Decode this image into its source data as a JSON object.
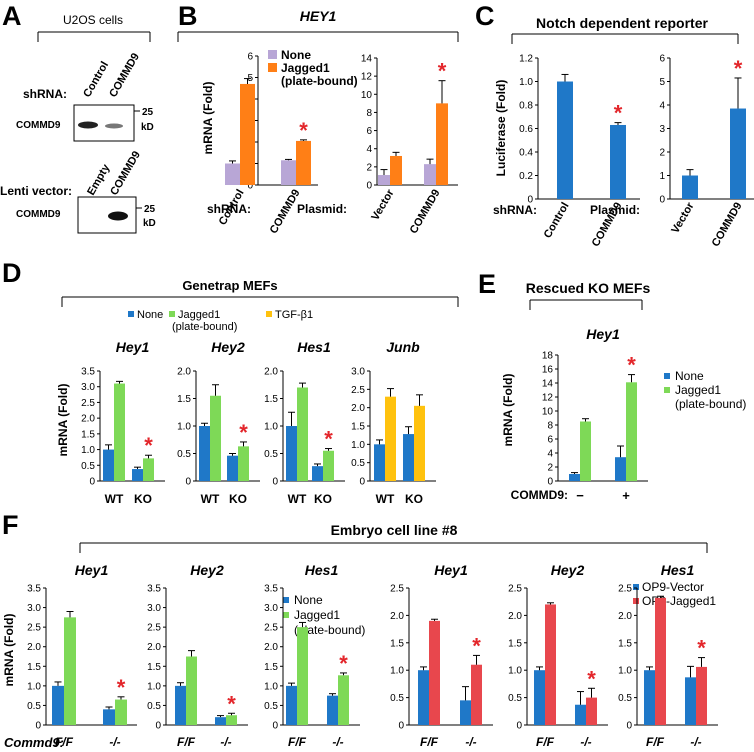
{
  "colors": {
    "blue": "#1f78c8",
    "green": "#7ed957",
    "orange": "#ff7f16",
    "lavender": "#b8a6d6",
    "yellow": "#ffc20e",
    "red": "#e8474d",
    "star": "#e3262b"
  },
  "panels": {
    "A": {
      "letter": "A",
      "cells": "U2OS cells",
      "shrna_label": "shRNA:",
      "lane1": "Control",
      "lane2": "COMMD9",
      "band1": "COMMD9",
      "mw1": "25",
      "kd1": "kD",
      "lenti_label": "Lenti vector:",
      "lane3": "Empty",
      "lane4": "COMMD9",
      "band2": "COMMD9",
      "mw2": "25",
      "kd2": "kD"
    },
    "B": {
      "letter": "B",
      "title": "HEY1",
      "ylabel": "mRNA (Fold)",
      "legend_none": "None",
      "legend_jag": "Jagged1",
      "legend_jag2": "(plate-bound)",
      "row1": "shRNA:",
      "row2": "Plasmid:"
    },
    "C": {
      "letter": "C",
      "title": "Notch dependent reporter",
      "ylabel": "Luciferase (Fold)",
      "row1": "shRNA:",
      "row2": "Plasmid:"
    },
    "D": {
      "letter": "D",
      "title": "Genetrap MEFs",
      "ylabel": "mRNA (Fold)",
      "legend_none": "None",
      "legend_jag": "Jagged1",
      "legend_jag2": "(plate-bound)",
      "legend_tgf": "TGF-β1"
    },
    "E": {
      "letter": "E",
      "title": "Rescued KO MEFs",
      "ylabel": "mRNA (Fold)",
      "legend_none": "None",
      "legend_jag": "Jagged1",
      "legend_jag2": "(plate-bound)",
      "row": "COMMD9:"
    },
    "F": {
      "letter": "F",
      "title": "Embryo cell line #8",
      "ylabel": "mRNA (Fold)",
      "legend_none": "None",
      "legend_jag": "Jagged1",
      "legend_jag2": "(plate-bound)",
      "legend_op9v": "OP9-Vector",
      "legend_op9j": "OP9-Jagged1",
      "row": "Commd9:"
    }
  },
  "chart_data": [
    {
      "id": "B1",
      "type": "bar",
      "title": "",
      "ylim": [
        0,
        6
      ],
      "ticks": [
        "0",
        "1",
        "2",
        "3",
        "4",
        "5",
        "6"
      ],
      "categories": [
        "Control",
        "COMMD9"
      ],
      "series": [
        {
          "name": "None",
          "color": "lavender",
          "values": [
            1.0,
            1.15
          ],
          "errors": [
            0.12,
            0.04
          ]
        },
        {
          "name": "Jagged1 (plate-bound)",
          "color": "orange",
          "values": [
            4.7,
            2.05
          ],
          "errors": [
            0.25,
            0.05
          ]
        }
      ],
      "stars": [
        false,
        true
      ]
    },
    {
      "id": "B2",
      "type": "bar",
      "title": "",
      "ylim": [
        0,
        14
      ],
      "ticks": [
        "0",
        "2",
        "4",
        "6",
        "8",
        "10",
        "12",
        "14"
      ],
      "categories": [
        "Vector",
        "COMMD9"
      ],
      "series": [
        {
          "name": "None",
          "color": "lavender",
          "values": [
            1.1,
            2.3
          ],
          "errors": [
            0.6,
            0.55
          ]
        },
        {
          "name": "Jagged1 (plate-bound)",
          "color": "orange",
          "values": [
            3.2,
            9.0
          ],
          "errors": [
            0.4,
            2.5
          ]
        }
      ],
      "stars": [
        false,
        true
      ]
    },
    {
      "id": "C1",
      "type": "bar",
      "title": "",
      "ylim": [
        0,
        1.2
      ],
      "ticks": [
        "0",
        "0.2",
        "0.4",
        "0.6",
        "0.8",
        "1.0",
        "1.2"
      ],
      "categories": [
        "Control",
        "COMMD9"
      ],
      "series": [
        {
          "name": "Luciferase",
          "color": "blue",
          "values": [
            1.0,
            0.63
          ],
          "errors": [
            0.06,
            0.02
          ]
        }
      ],
      "stars": [
        false,
        true
      ]
    },
    {
      "id": "C2",
      "type": "bar",
      "title": "",
      "ylim": [
        0,
        6
      ],
      "ticks": [
        "0",
        "1",
        "2",
        "3",
        "4",
        "5",
        "6"
      ],
      "categories": [
        "Vector",
        "COMMD9"
      ],
      "series": [
        {
          "name": "Luciferase",
          "color": "blue",
          "values": [
            1.0,
            3.85
          ],
          "errors": [
            0.25,
            1.3
          ]
        }
      ],
      "stars": [
        false,
        true
      ]
    },
    {
      "id": "D1",
      "type": "bar",
      "title": "Hey1",
      "ylim": [
        0,
        3.5
      ],
      "ticks": [
        "0",
        "0.5",
        "1.0",
        "1.5",
        "2.0",
        "2.5",
        "3.0",
        "3.5"
      ],
      "categories": [
        "WT",
        "KO"
      ],
      "series": [
        {
          "name": "None",
          "color": "blue",
          "values": [
            1.0,
            0.38
          ],
          "errors": [
            0.15,
            0.06
          ]
        },
        {
          "name": "Jagged1 (plate-bound)",
          "color": "green",
          "values": [
            3.1,
            0.72
          ],
          "errors": [
            0.07,
            0.1
          ]
        }
      ],
      "stars": [
        false,
        true
      ]
    },
    {
      "id": "D2",
      "type": "bar",
      "title": "Hey2",
      "ylim": [
        0,
        2.0
      ],
      "ticks": [
        "0",
        "0.5",
        "1.0",
        "1.5",
        "2.0"
      ],
      "categories": [
        "WT",
        "KO"
      ],
      "series": [
        {
          "name": "None",
          "color": "blue",
          "values": [
            1.0,
            0.46
          ],
          "errors": [
            0.05,
            0.04
          ]
        },
        {
          "name": "Jagged1 (plate-bound)",
          "color": "green",
          "values": [
            1.55,
            0.63
          ],
          "errors": [
            0.2,
            0.08
          ]
        }
      ],
      "stars": [
        false,
        true
      ]
    },
    {
      "id": "D3",
      "type": "bar",
      "title": "Hes1",
      "ylim": [
        0,
        2.0
      ],
      "ticks": [
        "0",
        "0.5",
        "1.0",
        "1.5",
        "2.0"
      ],
      "categories": [
        "WT",
        "KO"
      ],
      "series": [
        {
          "name": "None",
          "color": "blue",
          "values": [
            1.0,
            0.27
          ],
          "errors": [
            0.25,
            0.04
          ]
        },
        {
          "name": "Jagged1 (plate-bound)",
          "color": "green",
          "values": [
            1.7,
            0.55
          ],
          "errors": [
            0.08,
            0.04
          ]
        }
      ],
      "stars": [
        false,
        true
      ]
    },
    {
      "id": "D4",
      "type": "bar",
      "title": "Junb",
      "ylim": [
        0,
        3.0
      ],
      "ticks": [
        "0",
        "0.5",
        "1.0",
        "1.5",
        "2.0",
        "2.5",
        "3.0"
      ],
      "categories": [
        "WT",
        "KO"
      ],
      "series": [
        {
          "name": "None",
          "color": "blue",
          "values": [
            1.0,
            1.28
          ],
          "errors": [
            0.12,
            0.2
          ]
        },
        {
          "name": "TGF-β1",
          "color": "yellow",
          "values": [
            2.3,
            2.05
          ],
          "errors": [
            0.22,
            0.3
          ]
        }
      ],
      "stars": [
        false,
        false
      ]
    },
    {
      "id": "E1",
      "type": "bar",
      "title": "Hey1",
      "ylim": [
        0,
        18
      ],
      "ticks": [
        "0",
        "2",
        "4",
        "6",
        "8",
        "10",
        "12",
        "14",
        "16",
        "18"
      ],
      "categories": [
        "−",
        "+"
      ],
      "series": [
        {
          "name": "None",
          "color": "blue",
          "values": [
            1.0,
            3.4
          ],
          "errors": [
            0.2,
            1.6
          ]
        },
        {
          "name": "Jagged1 (plate-bound)",
          "color": "green",
          "values": [
            8.5,
            14.1
          ],
          "errors": [
            0.4,
            1.1
          ]
        }
      ],
      "stars": [
        false,
        true
      ]
    },
    {
      "id": "F1",
      "type": "bar",
      "title": "Hey1",
      "ylim": [
        0,
        3.5
      ],
      "ticks": [
        "0",
        "0.5",
        "1.0",
        "1.5",
        "2.0",
        "2.5",
        "3.0",
        "3.5"
      ],
      "categories": [
        "F/F",
        "-/-"
      ],
      "series": [
        {
          "name": "None",
          "color": "blue",
          "values": [
            1.0,
            0.4
          ],
          "errors": [
            0.1,
            0.06
          ]
        },
        {
          "name": "Jagged1 (plate-bound)",
          "color": "green",
          "values": [
            2.75,
            0.65
          ],
          "errors": [
            0.15,
            0.07
          ]
        }
      ],
      "stars": [
        false,
        true
      ]
    },
    {
      "id": "F2",
      "type": "bar",
      "title": "Hey2",
      "ylim": [
        0,
        3.5
      ],
      "ticks": [
        "0",
        "0.5",
        "1.0",
        "1.5",
        "2.0",
        "2.5",
        "3.0",
        "3.5"
      ],
      "categories": [
        "F/F",
        "-/-"
      ],
      "series": [
        {
          "name": "None",
          "color": "blue",
          "values": [
            1.0,
            0.2
          ],
          "errors": [
            0.08,
            0.04
          ]
        },
        {
          "name": "Jagged1 (plate-bound)",
          "color": "green",
          "values": [
            1.75,
            0.25
          ],
          "errors": [
            0.15,
            0.05
          ]
        }
      ],
      "stars": [
        false,
        true
      ]
    },
    {
      "id": "F3",
      "type": "bar",
      "title": "Hes1",
      "ylim": [
        0,
        3.5
      ],
      "ticks": [
        "0",
        "0.5",
        "1.0",
        "1.5",
        "2.0",
        "2.5",
        "3.0",
        "3.5"
      ],
      "categories": [
        "F/F",
        "-/-"
      ],
      "series": [
        {
          "name": "None",
          "color": "blue",
          "values": [
            1.0,
            0.75
          ],
          "errors": [
            0.07,
            0.05
          ]
        },
        {
          "name": "Jagged1 (plate-bound)",
          "color": "green",
          "values": [
            2.5,
            1.27
          ],
          "errors": [
            0.12,
            0.06
          ]
        }
      ],
      "stars": [
        false,
        true
      ]
    },
    {
      "id": "F4",
      "type": "bar",
      "title": "Hey1",
      "ylim": [
        0,
        2.5
      ],
      "ticks": [
        "0",
        "0.5",
        "1.0",
        "1.5",
        "2.0",
        "2.5"
      ],
      "categories": [
        "F/F",
        "-/-"
      ],
      "series": [
        {
          "name": "OP9-Vector",
          "color": "blue",
          "values": [
            1.0,
            0.45
          ],
          "errors": [
            0.06,
            0.25
          ]
        },
        {
          "name": "OP9-Jagged1",
          "color": "red",
          "values": [
            1.9,
            1.1
          ],
          "errors": [
            0.03,
            0.17
          ]
        }
      ],
      "stars": [
        false,
        true
      ]
    },
    {
      "id": "F5",
      "type": "bar",
      "title": "Hey2",
      "ylim": [
        0,
        2.5
      ],
      "ticks": [
        "0",
        "0.5",
        "1.0",
        "1.5",
        "2.0",
        "2.5"
      ],
      "categories": [
        "F/F",
        "-/-"
      ],
      "series": [
        {
          "name": "OP9-Vector",
          "color": "blue",
          "values": [
            1.0,
            0.37
          ],
          "errors": [
            0.06,
            0.24
          ]
        },
        {
          "name": "OP9-Jagged1",
          "color": "red",
          "values": [
            2.2,
            0.5
          ],
          "errors": [
            0.03,
            0.17
          ]
        }
      ],
      "stars": [
        false,
        true
      ]
    },
    {
      "id": "F6",
      "type": "bar",
      "title": "Hes1",
      "ylim": [
        0,
        2.5
      ],
      "ticks": [
        "0",
        "0.5",
        "1.0",
        "1.5",
        "2.0",
        "2.5"
      ],
      "categories": [
        "F/F",
        "-/-"
      ],
      "series": [
        {
          "name": "OP9-Vector",
          "color": "blue",
          "values": [
            1.0,
            0.87
          ],
          "errors": [
            0.06,
            0.2
          ]
        },
        {
          "name": "OP9-Jagged1",
          "color": "red",
          "values": [
            2.32,
            1.06
          ],
          "errors": [
            0.03,
            0.17
          ]
        }
      ],
      "stars": [
        false,
        true
      ]
    }
  ]
}
